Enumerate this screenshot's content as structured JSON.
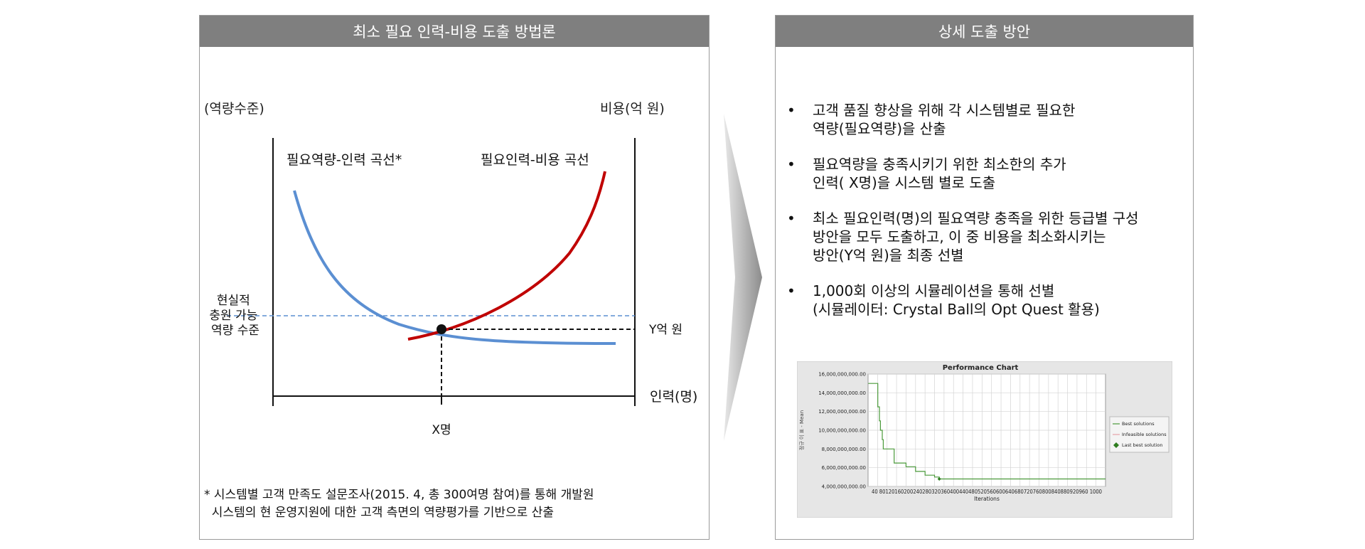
{
  "left_panel": {
    "title": "최소 필요 인력-비용 도출 방법론",
    "y_axis_left_label": "(역량수준)",
    "y_axis_right_label": "비용(억 원)",
    "x_axis_label": "인력(명)",
    "curve_blue_label": "필요역량-인력 곡선*",
    "curve_red_label": "필요인력-비용 곡선",
    "realistic_level_label": [
      "현실적",
      "충원 가능",
      "역량 수준"
    ],
    "y_value_label": "Y억 원",
    "x_value_label": "X명",
    "colors": {
      "blue_curve": "#5b8fd2",
      "red_curve": "#c00000",
      "dashed_blue": "#5b8fd2"
    },
    "footnote": [
      "* 시스템별 고객 만족도 설문조사(2015. 4, 총 300여명 참여)를 통해 개발원",
      "  시스템의 현 운영지원에 대한 고객 측면의 역량평가를 기반으로 산출"
    ]
  },
  "right_panel": {
    "title": "상세 도출 방안",
    "bullets": [
      {
        "lines": [
          "고객 품질 향상을 위해 각 시스템별로 필요한",
          "역량(필요역량)을 산출"
        ]
      },
      {
        "lines": [
          "필요역량을 충족시키기 위한 최소한의 추가",
          "인력( X명)을 시스템 별로 도출"
        ]
      },
      {
        "lines": [
          "최소 필요인력(명)의 필요역량 충족을 위한 등급별 구성",
          "방안을 모두 도출하고, 이 중 비용을 최소화시키는",
          "방안(Y억 원)을 최종 선별"
        ]
      },
      {
        "lines": [
          "1,000회 이상의 시뮬레이션을 통해 선별",
          "(시뮬레이터: Crystal Ball의 Opt Quest 활용)"
        ]
      }
    ],
    "bullet_glyph": "•"
  },
  "chart_data": {
    "type": "line",
    "title": "Performance Chart",
    "xlabel": "Iterations",
    "ylabel": "정규 이 표 - Mean",
    "ylim": [
      4000000000,
      16000000000
    ],
    "y_ticks": [
      "16,000,000,000.00",
      "14,000,000,000.00",
      "12,000,000,000.00",
      "10,000,000,000.00",
      "8,000,000,000.00",
      "6,000,000,000.00",
      "4,000,000,000.00"
    ],
    "x_tick_text": "40 80120160200240280320360400440480520560600640680720760800840880920960 1000",
    "legend": [
      "Best solutions",
      "Infeasible solutions",
      "Last best solution"
    ],
    "legend_position": "right",
    "grid": true,
    "series": [
      {
        "name": "Best solutions",
        "x": [
          1,
          40,
          41,
          48,
          52,
          60,
          64,
          100,
          110,
          150,
          160,
          190,
          200,
          220,
          240,
          270,
          280,
          300,
          1000
        ],
        "y": [
          15000000000,
          15000000000,
          12500000000,
          11000000000,
          10000000000,
          9000000000,
          8000000000,
          8000000000,
          6500000000,
          6500000000,
          6100000000,
          6100000000,
          5600000000,
          5600000000,
          5200000000,
          5200000000,
          5000000000,
          4800000000,
          4800000000
        ]
      }
    ],
    "last_best": {
      "x": 300,
      "y": 4800000000
    },
    "colors": {
      "best": "#4a9a3a",
      "infeasible": "#e7a0a8",
      "last_best": "#2e7d1f",
      "background": "#e6e6e6"
    }
  }
}
